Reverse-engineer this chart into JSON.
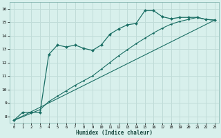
{
  "title": "",
  "xlabel": "Humidex (Indice chaleur)",
  "ylabel": "",
  "bg_color": "#d8f0ec",
  "grid_color": "#c0dcd8",
  "line_color": "#1a6e64",
  "xlim": [
    -0.5,
    23.5
  ],
  "ylim": [
    7.5,
    16.5
  ],
  "xticks": [
    0,
    1,
    2,
    3,
    4,
    5,
    6,
    7,
    8,
    9,
    10,
    11,
    12,
    13,
    14,
    15,
    16,
    17,
    18,
    19,
    20,
    21,
    22,
    23
  ],
  "yticks": [
    8,
    9,
    10,
    11,
    12,
    13,
    14,
    15,
    16
  ],
  "curve1_x": [
    0,
    1,
    2,
    3,
    4,
    5,
    6,
    7,
    8,
    9,
    10,
    11,
    12,
    13,
    14,
    15,
    16,
    17,
    18,
    19,
    20,
    21,
    22,
    23
  ],
  "curve1_y": [
    7.7,
    8.3,
    8.3,
    8.3,
    12.6,
    13.3,
    13.15,
    13.3,
    13.05,
    12.9,
    13.3,
    14.1,
    14.5,
    14.8,
    14.9,
    15.85,
    15.85,
    15.4,
    15.25,
    15.35,
    15.35,
    15.35,
    15.2,
    15.15
  ],
  "curve2_x": [
    0,
    3,
    4,
    5,
    6,
    7,
    8,
    9,
    10,
    11,
    12,
    13,
    14,
    15,
    16,
    17,
    18,
    19,
    20,
    21,
    22,
    23
  ],
  "curve2_y": [
    7.7,
    8.5,
    9.1,
    9.5,
    9.9,
    10.3,
    10.65,
    11.0,
    11.5,
    12.0,
    12.5,
    12.95,
    13.4,
    13.8,
    14.2,
    14.55,
    14.85,
    15.05,
    15.2,
    15.35,
    15.2,
    15.15
  ],
  "curve3_x": [
    0,
    23
  ],
  "curve3_y": [
    7.7,
    15.15
  ],
  "marker": "D",
  "markersize": 2.0,
  "lw_main": 0.9,
  "lw_secondary": 0.8
}
